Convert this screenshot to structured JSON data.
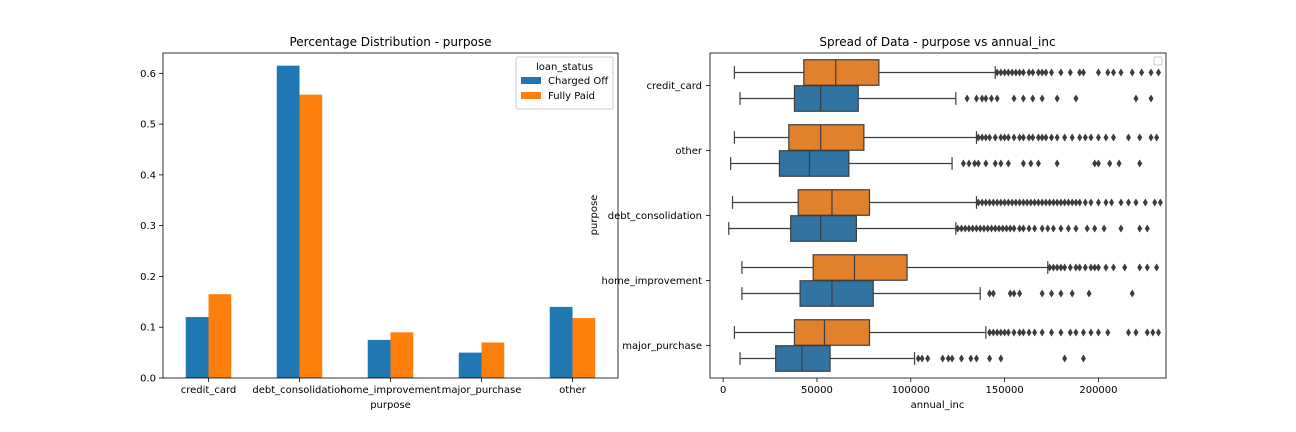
{
  "chart_data": [
    {
      "type": "bar",
      "title": "Percentage Distribution - purpose",
      "xlabel": "purpose",
      "ylabel": "",
      "categories": [
        "credit_card",
        "debt_consolidation",
        "home_improvement",
        "major_purchase",
        "other"
      ],
      "series": [
        {
          "name": "Charged Off",
          "color": "#1f77b4",
          "values": [
            0.12,
            0.615,
            0.075,
            0.05,
            0.14
          ]
        },
        {
          "name": "Fully Paid",
          "color": "#ff7f0e",
          "values": [
            0.165,
            0.558,
            0.09,
            0.07,
            0.118
          ]
        }
      ],
      "ylim": [
        0,
        0.64
      ],
      "yticks": [
        "0.0",
        "0.1",
        "0.2",
        "0.3",
        "0.4",
        "0.5",
        "0.6"
      ],
      "legend": {
        "title": "loan_status",
        "placement": "top-right"
      }
    },
    {
      "type": "box",
      "title": "Spread of Data - purpose vs annual_inc",
      "xlabel": "annual_inc",
      "ylabel": "purpose",
      "categories": [
        "credit_card",
        "other",
        "debt_consolidation",
        "home_improvement",
        "major_purchase"
      ],
      "xlim": [
        -7000,
        236000
      ],
      "xticks": [
        "0",
        "50000",
        "100000",
        "150000",
        "200000"
      ],
      "series": [
        {
          "name": "Fully Paid",
          "color": "#e1812c",
          "boxes": [
            {
              "whislo": 6000,
              "q1": 43000,
              "med": 60000,
              "q3": 83000,
              "whishi": 145000,
              "fliers": [
                146000,
                148000,
                150000,
                152000,
                154000,
                156000,
                158000,
                160000,
                163000,
                165000,
                168000,
                170000,
                172000,
                175000,
                180000,
                185000,
                190000,
                192000,
                200000,
                205000,
                208000,
                212000,
                218000,
                223000,
                228000,
                232000
              ]
            },
            {
              "whislo": 6000,
              "q1": 35000,
              "med": 52000,
              "q3": 75000,
              "whishi": 135000,
              "fliers": [
                136000,
                138000,
                140000,
                142000,
                145000,
                148000,
                150000,
                152000,
                155000,
                158000,
                160000,
                163000,
                165000,
                168000,
                170000,
                172000,
                175000,
                178000,
                182000,
                186000,
                190000,
                193000,
                196000,
                200000,
                204000,
                208000,
                216000,
                222000,
                228000,
                231000
              ]
            },
            {
              "whislo": 5000,
              "q1": 40000,
              "med": 58000,
              "q3": 78000,
              "whishi": 135000,
              "fliers": [
                136000,
                138000,
                140000,
                142000,
                144000,
                146000,
                148000,
                150000,
                152000,
                154000,
                156000,
                158000,
                160000,
                162000,
                164000,
                166000,
                168000,
                170000,
                172000,
                174000,
                176000,
                178000,
                180000,
                182000,
                184000,
                186000,
                188000,
                190000,
                193000,
                196000,
                200000,
                204000,
                207000,
                212000,
                216000,
                220000,
                225000,
                230000,
                233000
              ]
            },
            {
              "whislo": 10000,
              "q1": 48000,
              "med": 70000,
              "q3": 98000,
              "whishi": 173000,
              "fliers": [
                174000,
                176000,
                178000,
                180000,
                182000,
                185000,
                188000,
                190000,
                193000,
                196000,
                198000,
                200000,
                204000,
                208000,
                214000,
                222000,
                226000,
                231000
              ]
            },
            {
              "whislo": 6000,
              "q1": 38000,
              "med": 54000,
              "q3": 78000,
              "whishi": 140000,
              "fliers": [
                142000,
                144000,
                146000,
                148000,
                150000,
                152000,
                155000,
                158000,
                160000,
                163000,
                166000,
                170000,
                175000,
                180000,
                185000,
                188000,
                192000,
                196000,
                200000,
                205000,
                216000,
                220000,
                226000,
                229000,
                232000
              ]
            }
          ]
        },
        {
          "name": "Charged Off",
          "color": "#3274a1",
          "boxes": [
            {
              "whislo": 9000,
              "q1": 38000,
              "med": 52000,
              "q3": 72000,
              "whishi": 124000,
              "fliers": [
                130000,
                135000,
                138000,
                140000,
                143000,
                146000,
                155000,
                160000,
                165000,
                170000,
                178000,
                188000,
                220000,
                228000
              ]
            },
            {
              "whislo": 4000,
              "q1": 30000,
              "med": 46000,
              "q3": 67000,
              "whishi": 122000,
              "fliers": [
                128000,
                131000,
                134000,
                136000,
                140000,
                145000,
                148000,
                152000,
                160000,
                164000,
                168000,
                178000,
                198000,
                200000,
                206000,
                211000,
                222000
              ]
            },
            {
              "whislo": 3000,
              "q1": 36000,
              "med": 52000,
              "q3": 71000,
              "whishi": 124000,
              "fliers": [
                125000,
                127000,
                129000,
                131000,
                133000,
                135000,
                137000,
                139000,
                141000,
                143000,
                145000,
                147000,
                149000,
                151000,
                153000,
                155000,
                158000,
                160000,
                163000,
                166000,
                170000,
                173000,
                176000,
                180000,
                184000,
                188000,
                194000,
                198000,
                203000,
                212000,
                222000,
                226000
              ]
            },
            {
              "whislo": 10000,
              "q1": 41000,
              "med": 58000,
              "q3": 80000,
              "whishi": 137000,
              "fliers": [
                142000,
                144000,
                153000,
                155000,
                158000,
                170000,
                175000,
                180000,
                186000,
                195000,
                218000
              ]
            },
            {
              "whislo": 9000,
              "q1": 28000,
              "med": 42000,
              "q3": 57000,
              "whishi": 102000,
              "fliers": [
                104000,
                106000,
                109000,
                117000,
                120000,
                122000,
                127000,
                132000,
                135000,
                142000,
                148000,
                182000,
                192000
              ]
            }
          ]
        }
      ],
      "legend": {
        "placement": "top-right"
      }
    }
  ]
}
